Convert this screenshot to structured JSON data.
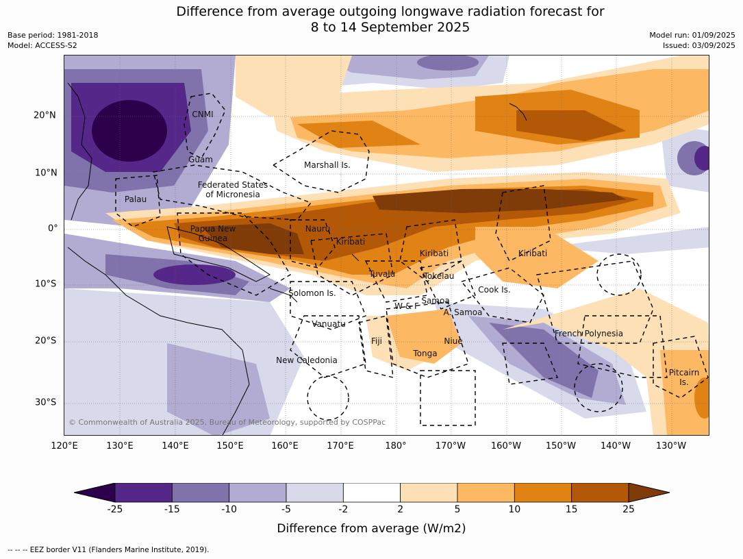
{
  "title_line1": "Difference from average outgoing longwave radiation forecast for",
  "title_line2": "8 to 14 September 2025",
  "base_period": "Base period: 1981-2018",
  "model": "Model: ACCESS-S2",
  "model_run": "Model run: 01/09/2025",
  "issued": "Issued: 03/09/2025",
  "copyright": "© Commonwealth of Australia 2025, Bureau of Meteorology, supported by COSPPac",
  "lat_labels": [
    "20°N",
    "10°N",
    "0°",
    "10°S",
    "20°S",
    "30°S"
  ],
  "lon_labels": [
    "120°E",
    "130°E",
    "140°E",
    "150°E",
    "160°E",
    "170°E",
    "180°",
    "170°W",
    "160°W",
    "150°W",
    "140°W",
    "130°W"
  ],
  "regions": {
    "cnmi": "CNMI",
    "guam": "Guam",
    "marshall": "Marshall Is.",
    "fsm_1": "Federated States",
    "fsm_2": "of Micronesia",
    "palau": "Palau",
    "png_1": "Papua New",
    "png_2": "Guinea",
    "nauru": "Nauru",
    "kiribati_w": "Kiribati",
    "kiribati_c": "Kiribati",
    "kiribati_e": "Kiribati",
    "tuvalu": "Tuvalu",
    "tokelau": "Tokelau",
    "cook": "Cook Is.",
    "solomon": "Solomon Is.",
    "wf": "W & F",
    "samoa": "Samoa",
    "asamoa": "A. Samoa",
    "vanuatu": "Vanuatu",
    "fiji": "Fiji",
    "niue": "Niue",
    "tonga": "Tonga",
    "frenchpoly": "French Polynesia",
    "newcal": "New Caledonia",
    "pitcairn_1": "Pitcairn",
    "pitcairn_2": "Is."
  },
  "colorbar": {
    "ticks": [
      "-25",
      "-15",
      "-10",
      "-5",
      "-2",
      "2",
      "5",
      "10",
      "15",
      "25"
    ],
    "colors": [
      "#2d004b",
      "#542788",
      "#8073ac",
      "#b2abd2",
      "#d8daeb",
      "#ffffff",
      "#fee0b6",
      "#fdb863",
      "#e08214",
      "#b35806",
      "#7f3b08"
    ],
    "label": "Difference from average (W/m2)"
  },
  "footnote": "--  --  -- EEZ border V11 (Flanders Marine Institute, 2019)."
}
